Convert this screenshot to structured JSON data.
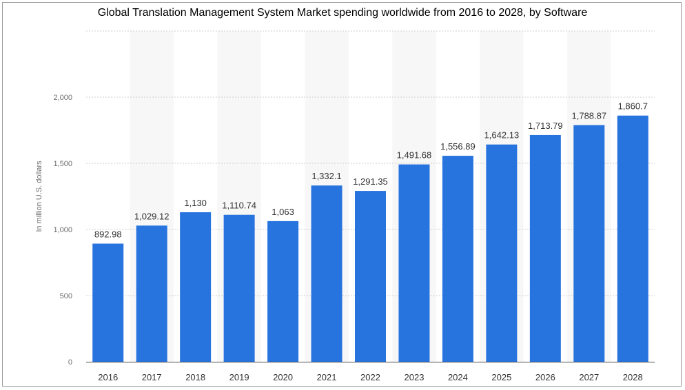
{
  "chart_data": {
    "type": "bar",
    "title": "Global Translation Management System Market spending worldwide from 2016 to 2028, by Software",
    "xlabel": "",
    "ylabel": "In million U.S. dollars",
    "categories": [
      "2016",
      "2017",
      "2018",
      "2019",
      "2020",
      "2021",
      "2022",
      "2023",
      "2024",
      "2025",
      "2026",
      "2027",
      "2028"
    ],
    "values": [
      892.98,
      1029.12,
      1130,
      1110.74,
      1063,
      1332.1,
      1291.35,
      1491.68,
      1556.89,
      1642.13,
      1713.79,
      1788.87,
      1860.7
    ],
    "value_labels": [
      "892.98",
      "1,029.12",
      "1,130",
      "1,110.74",
      "1,063",
      "1,332.1",
      "1,291.35",
      "1,491.68",
      "1,556.89",
      "1,642.13",
      "1,713.79",
      "1,788.87",
      "1,860.7"
    ],
    "yticks": [
      0,
      500,
      1000,
      1500,
      2000
    ],
    "ytick_labels": [
      "0",
      "500",
      "1,000",
      "1,500",
      "2,000"
    ],
    "ylim": [
      0,
      2500
    ],
    "grid": true,
    "bar_color": "#2874df",
    "band_color": "#f7f7f7"
  }
}
